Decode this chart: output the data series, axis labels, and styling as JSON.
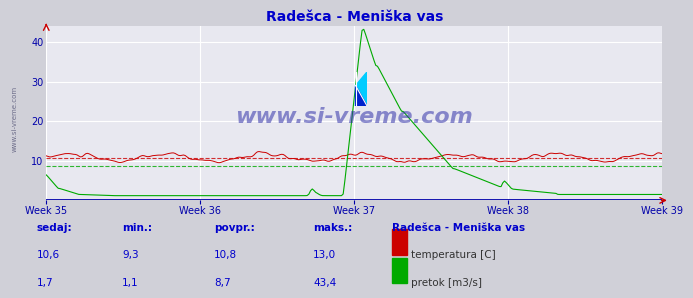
{
  "title": "Radešca - Meniška vas",
  "title_color": "#0000cc",
  "bg_color": "#d0d0d8",
  "plot_bg_color": "#e8e8f0",
  "grid_color_white": "#ffffff",
  "grid_color_pink": "#f0b0b0",
  "temp_color": "#cc0000",
  "flow_color": "#00aa00",
  "avg_temp": 10.8,
  "avg_flow": 8.7,
  "axis_color": "#0000aa",
  "tick_color": "#0000aa",
  "watermark": "www.si-vreme.com",
  "watermark_color": "#3333aa",
  "sidebar_text": "www.si-vreme.com",
  "ylim": [
    0,
    44
  ],
  "yticks": [
    10,
    20,
    30,
    40
  ],
  "week_labels": [
    "Week 35",
    "Week 36",
    "Week 37",
    "Week 38",
    "Week 39"
  ],
  "footer_title": "Radešca - Meniška vas",
  "footer_label1": "temperatura [C]",
  "footer_label2": "pretok [m3/s]",
  "footer_color": "#0000cc",
  "footer_sedaj1": "10,6",
  "footer_min1": "9,3",
  "footer_povpr1": "10,8",
  "footer_maks1": "13,0",
  "footer_sedaj2": "1,7",
  "footer_min2": "1,1",
  "footer_povpr2": "8,7",
  "footer_maks2": "43,4"
}
